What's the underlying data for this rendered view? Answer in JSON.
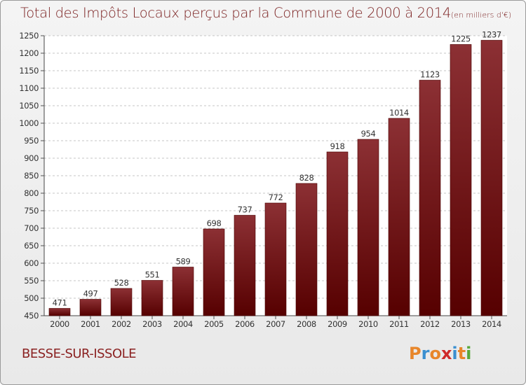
{
  "header": {
    "title": "Total des Impôts Locaux perçus par la Commune de 2000 à 2014",
    "unit": "(en milliers d'€)"
  },
  "footer": {
    "commune": "BESSE-SUR-ISSOLE",
    "logo_letters": [
      "P",
      "r",
      "o",
      "x",
      "i",
      "t",
      "i"
    ],
    "logo_colors": [
      "#e8862a",
      "#3a8fd0",
      "#e8862a",
      "#cf2a2a",
      "#3a8fd0",
      "#e8862a",
      "#56a83a"
    ]
  },
  "colors": {
    "bar_top": "#8c3034",
    "bar_bottom": "#560000",
    "title": "#7a1f1f",
    "grid": "#c4c4c4"
  },
  "chart_data": {
    "type": "bar",
    "categories": [
      "2000",
      "2001",
      "2002",
      "2003",
      "2004",
      "2005",
      "2006",
      "2007",
      "2008",
      "2009",
      "2010",
      "2011",
      "2012",
      "2013",
      "2014"
    ],
    "values": [
      471,
      497,
      528,
      551,
      589,
      698,
      737,
      772,
      828,
      918,
      954,
      1014,
      1123,
      1225,
      1237
    ],
    "ylim": [
      450,
      1250
    ],
    "yticks": [
      450,
      500,
      550,
      600,
      650,
      700,
      750,
      800,
      850,
      900,
      950,
      1000,
      1050,
      1100,
      1150,
      1200,
      1250
    ],
    "grid": true,
    "data_labels": true
  }
}
